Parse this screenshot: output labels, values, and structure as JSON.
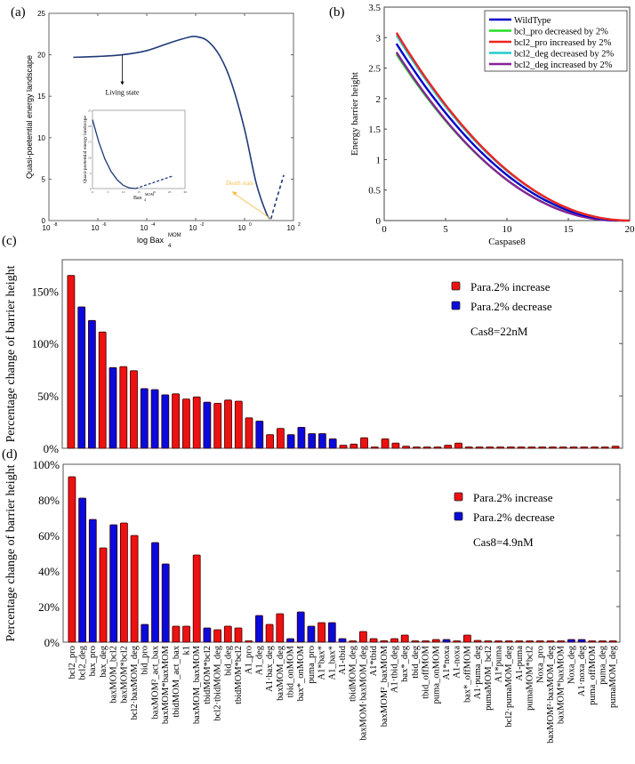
{
  "chart_data": [
    {
      "panel": "(a)",
      "type": "line",
      "xlabel": "log Bax",
      "xlabel_sub": "4",
      "xlabel_sup": "MOM",
      "ylabel": "Quasi-poetential energy landscape",
      "xscale": "log",
      "xlim": [
        1e-08,
        100
      ],
      "ylim": [
        0,
        25
      ],
      "xticks": [
        "10^-8",
        "10^-6",
        "10^-4",
        "10^-2",
        "10^0",
        "10^2"
      ],
      "xtick_exponents": [
        "-8",
        "-6",
        "-4",
        "-2",
        "0",
        "2"
      ],
      "yticks": [
        "0",
        "5",
        "10",
        "15",
        "20",
        "25"
      ],
      "series": [
        {
          "name": "landscape",
          "style": "solid",
          "color": "#1f3a78",
          "x": [
            1e-07,
            1e-06,
            1e-05,
            0.0001,
            0.001,
            0.005,
            0.01,
            0.03,
            0.1,
            0.3,
            1,
            3,
            8,
            12
          ],
          "y": [
            19.7,
            19.8,
            20.0,
            20.5,
            21.5,
            22.1,
            22.2,
            21.7,
            19.8,
            16.5,
            11.0,
            4.5,
            0.8,
            0.2
          ]
        },
        {
          "name": "extension",
          "style": "dashed",
          "color": "#1f3a78",
          "x": [
            12,
            20,
            40
          ],
          "y": [
            0.2,
            2.5,
            5.5
          ]
        }
      ],
      "annotations": [
        {
          "text": "Living state",
          "color": "#000000",
          "target_x": 1e-05,
          "target_y": 20.0
        },
        {
          "text": "Death state",
          "color": "#f0c050",
          "target_x": 12,
          "target_y": 0.2
        }
      ],
      "inset": {
        "xlabel": "Bax",
        "xlabel_sub": "4",
        "xlabel_sup": "MOM",
        "ylabel": "Quasi-poetential energy landscape",
        "xlim": [
          0,
          30
        ],
        "ylim": [
          0,
          25
        ],
        "xticks": [
          "0",
          "5",
          "10",
          "15",
          "20",
          "25",
          "30"
        ],
        "yticks": [
          "0",
          "5",
          "10",
          "15",
          "20",
          "25"
        ],
        "series": [
          {
            "name": "solid",
            "style": "solid",
            "x": [
              0,
              2,
              4,
              6,
              8,
              10,
              12,
              14
            ],
            "y": [
              22,
              15,
              9.5,
              5.5,
              2.8,
              1.0,
              0.2,
              0
            ]
          },
          {
            "name": "dashed",
            "style": "dashed",
            "x": [
              14,
              20,
              26
            ],
            "y": [
              0,
              2,
              4
            ]
          }
        ]
      }
    },
    {
      "panel": "(b)",
      "type": "line",
      "xlabel": "Caspase8",
      "ylabel": "Energy barrier height",
      "xlim": [
        0,
        20
      ],
      "ylim": [
        0,
        3.5
      ],
      "xticks": [
        "0",
        "5",
        "10",
        "15",
        "20"
      ],
      "yticks": [
        "0",
        "0.5",
        "1",
        "1.5",
        "2",
        "2.5",
        "3",
        "3.5"
      ],
      "legend_position": "top-right",
      "series": [
        {
          "name": "WildType",
          "color": "#0000cc",
          "start": 2.9,
          "end_x": 19.6
        },
        {
          "name": "bcl_pro decreased by 2%",
          "color": "#22dd22",
          "start": 2.73,
          "end_x": 19.1
        },
        {
          "name": "bcl2_pro increased by 2%",
          "color": "#ee2222",
          "start": 3.08,
          "end_x": 20.0
        },
        {
          "name": "bcl2_deg decreased by 2%",
          "color": "#22cccc",
          "start": 3.04,
          "end_x": 20.0
        },
        {
          "name": "bcl2_deg increased by 2%",
          "color": "#882299",
          "start": 2.76,
          "end_x": 19.0
        }
      ],
      "x_start": 1
    },
    {
      "panel": "(c)",
      "type": "bar",
      "ylabel": "Percentage change of barrier height",
      "ylim": [
        0,
        1.8
      ],
      "yticks": [
        "0%",
        "50%",
        "100%",
        "150%"
      ],
      "ytick_values": [
        0,
        0.5,
        1.0,
        1.5
      ],
      "legend": [
        {
          "name": "Para.2% increase",
          "color": "#ee1111"
        },
        {
          "name": "Para.2% decrease",
          "color": "#0a0adc"
        }
      ],
      "note": "Cas8=22nM",
      "values": [
        1.65,
        1.35,
        1.22,
        1.11,
        0.77,
        0.78,
        0.74,
        0.57,
        0.56,
        0.51,
        0.52,
        0.47,
        0.49,
        0.44,
        0.43,
        0.46,
        0.45,
        0.29,
        0.26,
        0.13,
        0.19,
        0.13,
        0.2,
        0.14,
        0.14,
        0.09,
        0.03,
        0.04,
        0.1,
        0.0,
        0.09,
        0.05,
        0.02,
        0.01,
        0.01,
        0.0,
        0.03,
        0.05,
        0.01,
        0.01,
        0.01,
        0.01,
        0.01,
        0.01,
        0.01,
        0.01,
        0.0,
        0.0,
        0.0,
        0.0,
        0.0,
        0.01,
        0.02
      ],
      "colors": [
        "r",
        "b",
        "b",
        "r",
        "b",
        "r",
        "r",
        "b",
        "b",
        "b",
        "r",
        "r",
        "r",
        "b",
        "r",
        "r",
        "r",
        "r",
        "b",
        "r",
        "r",
        "b",
        "b",
        "b",
        "b",
        "b",
        "r",
        "r",
        "r",
        "r",
        "r",
        "r",
        "r",
        "r",
        "r",
        "r",
        "r",
        "r",
        "r",
        "r",
        "r",
        "r",
        "r",
        "r",
        "r",
        "r",
        "r",
        "r",
        "r",
        "r",
        "r",
        "r",
        "r"
      ]
    },
    {
      "panel": "(d)",
      "type": "bar",
      "ylabel": "Percentage change of barrier height",
      "ylim": [
        0,
        1.0
      ],
      "yticks": [
        "0%",
        "20%",
        "40%",
        "60%",
        "80%",
        "100%"
      ],
      "ytick_values": [
        0,
        0.2,
        0.4,
        0.6,
        0.8,
        1.0
      ],
      "legend": [
        {
          "name": "Para.2% increase",
          "color": "#ee1111"
        },
        {
          "name": "Para.2% decrease",
          "color": "#0a0adc"
        }
      ],
      "note": "Cas8=4.9nM",
      "categories": [
        "bcl2_pro",
        "bcl2_deg",
        "bax_pro",
        "bax_deg",
        "baxMOM_bcl2",
        "baxMOM*bcl2",
        "bcl2·baxMOM_deg",
        "bid_pro",
        "baxMOM²_act_bax",
        "baxMOM*baxMOM",
        "tbidMOM_act_bax",
        "k1",
        "baxMOM_baxMOM",
        "tbidMOM*bcl2",
        "bcl2·tbidMOM_deg",
        "bid_deg",
        "tbidMOM*bcl2",
        "A1_pro",
        "A1_deg",
        "A1·bax_deg",
        "baxMOM_deg",
        "tbid_onMOM",
        "bax*_onMOM",
        "puma_pro",
        "A1*bax*",
        "A1_bax*",
        "A1-tbid",
        "tbidMOM_deg",
        "baxMOM·baxMOM_deg",
        "A1*tbid",
        "baxMOM²_baxMOM",
        "A1·tbid_deg",
        "bax*_deg",
        "tbid_deg",
        "tbid_offMOM",
        "puma_onMOM",
        "A1*noxa",
        "A1-noxa",
        "bax*_offMOM",
        "A1·puma_deg",
        "pumaMOM_bcl2",
        "A1*puma",
        "bcl2·pumaMOM_deg",
        "A1-puma",
        "pumaMOM*bcl2",
        "Noxa_pro",
        "baxMOM²·baxMOM_deg",
        "baxMOM*baxMOM",
        "Noxa_deg",
        "A1·noxa_deg",
        "puma_offMOM",
        "puma_deg",
        "pumaMOM_deg"
      ],
      "values": [
        0.93,
        0.81,
        0.69,
        0.53,
        0.66,
        0.67,
        0.6,
        0.1,
        0.56,
        0.44,
        0.09,
        0.09,
        0.49,
        0.08,
        0.07,
        0.09,
        0.08,
        0.003,
        0.15,
        0.1,
        0.16,
        0.02,
        0.17,
        0.09,
        0.11,
        0.11,
        0.02,
        0.005,
        0.06,
        0.02,
        0.008,
        0.02,
        0.04,
        0.005,
        0.005,
        0.015,
        0.015,
        0.005,
        0.04,
        0.01,
        0.005,
        0.005,
        0.005,
        0.005,
        0.005,
        0.005,
        0.005,
        0.005,
        0.015,
        0.015,
        0.003,
        0.003,
        0.003
      ],
      "colors": [
        "r",
        "b",
        "b",
        "r",
        "b",
        "r",
        "r",
        "b",
        "b",
        "b",
        "r",
        "r",
        "r",
        "b",
        "r",
        "r",
        "r",
        "r",
        "b",
        "r",
        "r",
        "b",
        "b",
        "b",
        "r",
        "b",
        "b",
        "r",
        "r",
        "r",
        "r",
        "r",
        "r",
        "r",
        "r",
        "r",
        "b",
        "r",
        "r",
        "r",
        "r",
        "r",
        "r",
        "r",
        "r",
        "r",
        "r",
        "r",
        "b",
        "b",
        "r",
        "r",
        "r"
      ]
    }
  ],
  "panel_labels": [
    "(a)",
    "(b)",
    "(c)",
    "(d)"
  ]
}
